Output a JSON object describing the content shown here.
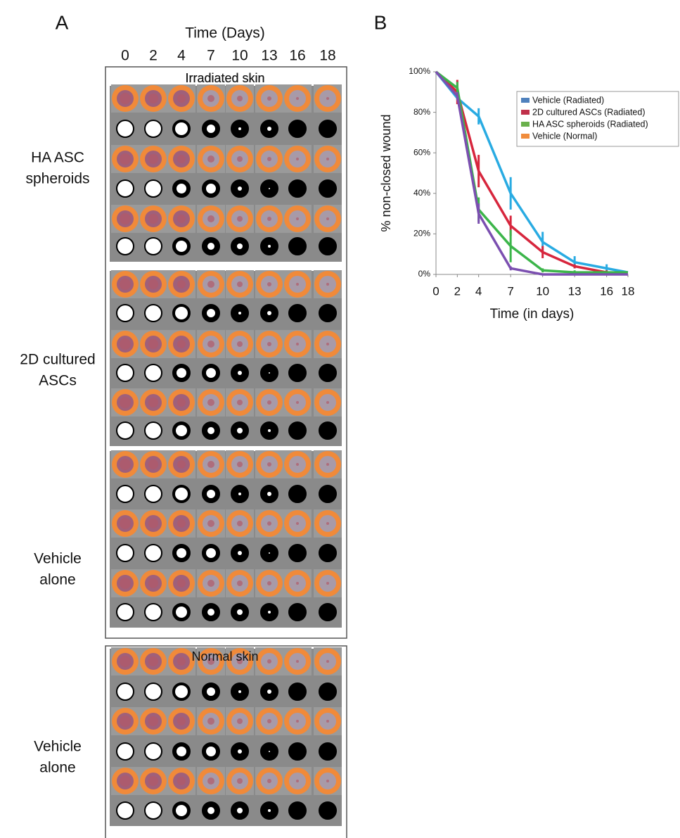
{
  "panel_a": {
    "label": "A",
    "time_title": "Time (Days)",
    "days": [
      "0",
      "2",
      "4",
      "7",
      "10",
      "13",
      "16",
      "18"
    ],
    "irradiated_title": "Irradiated skin",
    "irradiated_groups": [
      {
        "lines": [
          "HA ASC",
          "spheroids"
        ]
      },
      {
        "lines": [
          "2D cultured",
          "ASCs"
        ]
      },
      {
        "lines": [
          "Vehicle",
          "alone"
        ]
      }
    ],
    "normal_title": "Normal  skin",
    "normal_groups": [
      {
        "lines": [
          "Vehicle",
          "alone"
        ]
      }
    ]
  },
  "panel_b_label": "B",
  "chart_data": {
    "type": "line",
    "x_label": "Time (in days)",
    "y_label": "% non-closed wound",
    "x": [
      0,
      2,
      4,
      7,
      10,
      13,
      16,
      18
    ],
    "xlim": [
      0,
      18
    ],
    "xticks": [
      0,
      2,
      4,
      7,
      10,
      13,
      16,
      18
    ],
    "ylim": [
      0,
      100
    ],
    "yticks": [
      {
        "value": 0,
        "label": "0%"
      },
      {
        "value": 20,
        "label": "20%"
      },
      {
        "value": 40,
        "label": "40%"
      },
      {
        "value": 60,
        "label": "60%"
      },
      {
        "value": 80,
        "label": "80%"
      },
      {
        "value": 100,
        "label": "100%"
      }
    ],
    "legend": "top-right",
    "series": [
      {
        "name": "Vehicle (Radiated)",
        "color": "#29abe2",
        "legend_color": "#4f81bd",
        "values": [
          100,
          87,
          78,
          40,
          16,
          6,
          3,
          1
        ],
        "errors": [
          0,
          0,
          4,
          8,
          5,
          3,
          2,
          0
        ]
      },
      {
        "name": "2D cultured ASCs (Radiated)",
        "color": "#d7263d",
        "legend_color": "#c0304a",
        "values": [
          100,
          90,
          51,
          24,
          11,
          4,
          1,
          0
        ],
        "errors": [
          0,
          6,
          8,
          5,
          3,
          1,
          1,
          0
        ]
      },
      {
        "name": "HA ASC spheroids (Radiated)",
        "color": "#3cb54a",
        "legend_color": "#6ab04c",
        "values": [
          100,
          92,
          32,
          14,
          2,
          1,
          1,
          1
        ],
        "errors": [
          0,
          3,
          6,
          8,
          1,
          1,
          0,
          0
        ]
      },
      {
        "name": "Vehicle (Normal)",
        "color": "#7b4fb0",
        "legend_color": "#f08c3c",
        "values": [
          100,
          88,
          30,
          3,
          0,
          0,
          0,
          0
        ],
        "errors": [
          0,
          2,
          5,
          1,
          0,
          0,
          0,
          0
        ]
      }
    ]
  }
}
